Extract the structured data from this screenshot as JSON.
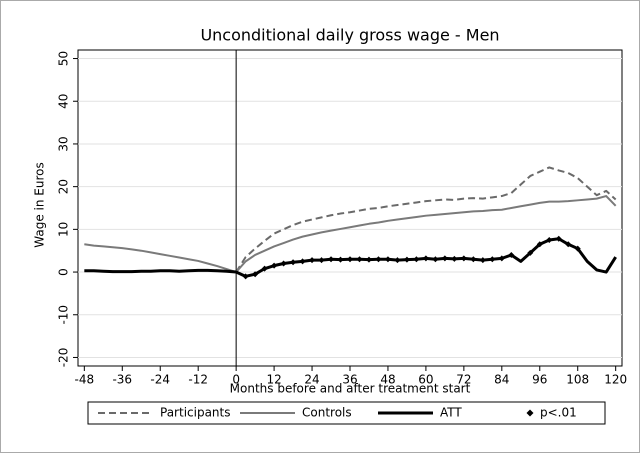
{
  "chart_data": {
    "type": "line",
    "title": "Unconditional daily gross wage - Men",
    "x_label": "Months before and after treatment start",
    "y_label": "Wage in Euros",
    "xlim": [
      -50,
      122
    ],
    "ylim": [
      -22,
      52
    ],
    "xticks": [
      -48,
      -36,
      -24,
      -12,
      0,
      12,
      24,
      36,
      48,
      60,
      72,
      84,
      96,
      108,
      120
    ],
    "yticks": [
      -20,
      -10,
      0,
      10,
      20,
      30,
      40,
      50
    ],
    "grid": true,
    "xline": 0,
    "legend": "bottom",
    "x": [
      -48,
      -45,
      -42,
      -39,
      -36,
      -33,
      -30,
      -27,
      -24,
      -21,
      -18,
      -15,
      -12,
      -9,
      -6,
      -3,
      0,
      3,
      6,
      9,
      12,
      15,
      18,
      21,
      24,
      27,
      30,
      33,
      36,
      39,
      42,
      45,
      48,
      51,
      54,
      57,
      60,
      63,
      66,
      69,
      72,
      75,
      78,
      81,
      84,
      87,
      90,
      93,
      96,
      99,
      102,
      105,
      108,
      111,
      114,
      117,
      120
    ],
    "series": [
      {
        "name": "Participants",
        "color": "#6a6a6a",
        "style": "dashed",
        "values": [
          null,
          null,
          null,
          null,
          null,
          null,
          null,
          null,
          null,
          null,
          null,
          null,
          null,
          null,
          null,
          null,
          0,
          3.5,
          5.5,
          7.3,
          9,
          10,
          11,
          11.8,
          12.3,
          12.8,
          13.3,
          13.7,
          14,
          14.4,
          14.8,
          15,
          15.4,
          15.7,
          16,
          16.3,
          16.6,
          16.8,
          17,
          16.9,
          17.2,
          17.3,
          17.2,
          17.5,
          17.8,
          18.5,
          20.5,
          22.5,
          23.5,
          24.5,
          23.8,
          23.2,
          22,
          20,
          18,
          19,
          17
        ]
      },
      {
        "name": "Controls",
        "color": "#7a7a7a",
        "style": "solid",
        "values": [
          6.5,
          6.2,
          6,
          5.8,
          5.6,
          5.3,
          5,
          4.6,
          4.2,
          3.8,
          3.4,
          3,
          2.6,
          2,
          1.4,
          0.7,
          0,
          2.5,
          4,
          5,
          6,
          6.8,
          7.6,
          8.3,
          8.8,
          9.3,
          9.7,
          10.1,
          10.5,
          10.9,
          11.3,
          11.6,
          12,
          12.3,
          12.6,
          12.9,
          13.2,
          13.4,
          13.6,
          13.8,
          14,
          14.2,
          14.3,
          14.5,
          14.6,
          15,
          15.4,
          15.8,
          16.2,
          16.5,
          16.5,
          16.6,
          16.8,
          17,
          17.2,
          17.8,
          15.5
        ]
      },
      {
        "name": "ATT",
        "color": "#000000",
        "style": "thick",
        "values": [
          0.3,
          0.3,
          0.2,
          0.1,
          0.1,
          0.1,
          0.2,
          0.2,
          0.3,
          0.3,
          0.2,
          0.3,
          0.4,
          0.4,
          0.3,
          0.2,
          0,
          -1,
          -0.5,
          0.8,
          1.5,
          2,
          2.3,
          2.5,
          2.8,
          2.8,
          3,
          2.9,
          3,
          3,
          2.9,
          3,
          3,
          2.8,
          2.9,
          3,
          3.2,
          3,
          3.2,
          3.1,
          3.2,
          3,
          2.8,
          3,
          3.2,
          4,
          2.5,
          4.5,
          6.5,
          7.5,
          7.8,
          6.5,
          5.5,
          2.5,
          0.5,
          0,
          3.5
        ]
      },
      {
        "name": "p<.01",
        "color": "#000000",
        "style": "diamond",
        "values": [
          null,
          null,
          null,
          null,
          null,
          null,
          null,
          null,
          null,
          null,
          null,
          null,
          null,
          null,
          null,
          null,
          null,
          -1,
          -0.5,
          0.8,
          1.5,
          2,
          2.3,
          2.5,
          2.8,
          2.8,
          3,
          2.9,
          3,
          3,
          2.9,
          3,
          3,
          2.8,
          2.9,
          3,
          3.2,
          3,
          3.2,
          3.1,
          3.2,
          3,
          2.8,
          3,
          3.2,
          4,
          null,
          4.5,
          6.5,
          7.5,
          7.8,
          6.5,
          5.5,
          null,
          null,
          null,
          null
        ]
      }
    ]
  }
}
